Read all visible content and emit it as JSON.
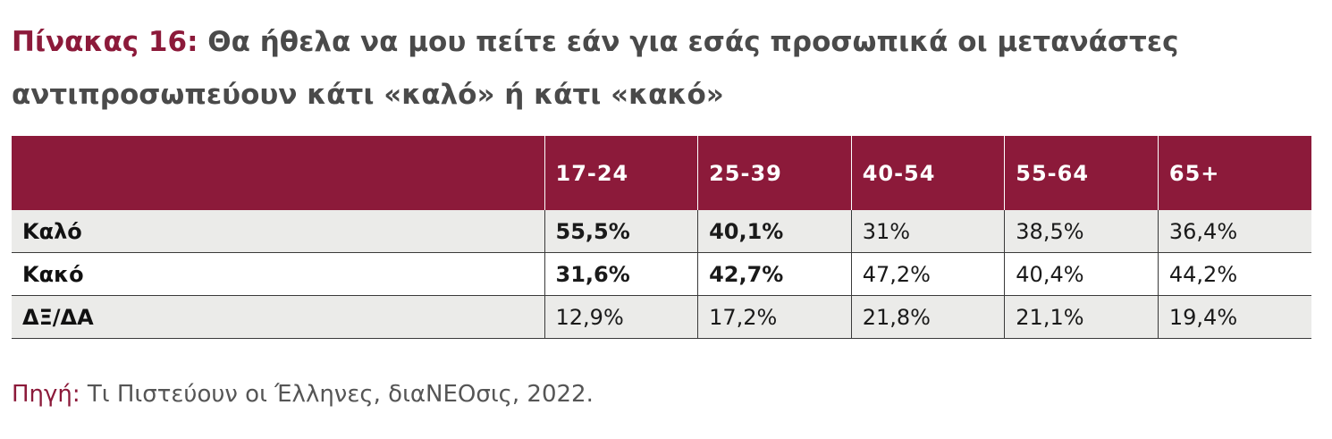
{
  "title": {
    "label": "Πίνακας 16:",
    "text": "Θα ήθελα να μου πείτε εάν για εσάς προσωπικά οι μετανάστες αντιπροσωπεύουν κάτι «καλό» ή κάτι «κακό»"
  },
  "table": {
    "headers": [
      "",
      "17-24",
      "25-39",
      "40-54",
      "55-64",
      "65+"
    ],
    "rows": [
      {
        "label": "Καλό",
        "values": [
          "55,5%",
          "40,1%",
          "31%",
          "38,5%",
          "36,4%"
        ]
      },
      {
        "label": "Κακό",
        "values": [
          "31,6%",
          "42,7%",
          "47,2%",
          "40,4%",
          "44,2%"
        ]
      },
      {
        "label": "ΔΞ/ΔΑ",
        "values": [
          "12,9%",
          "17,2%",
          "21,8%",
          "21,1%",
          "19,4%"
        ]
      }
    ]
  },
  "source": {
    "label": "Πηγή:",
    "text": "Τι Πιστεύουν οι Έλληνες, διαΝΕΟσις, 2022."
  },
  "colors": {
    "accent": "#8c1a3a",
    "row_shade": "#ebebe9",
    "text": "#4a4a4a"
  }
}
